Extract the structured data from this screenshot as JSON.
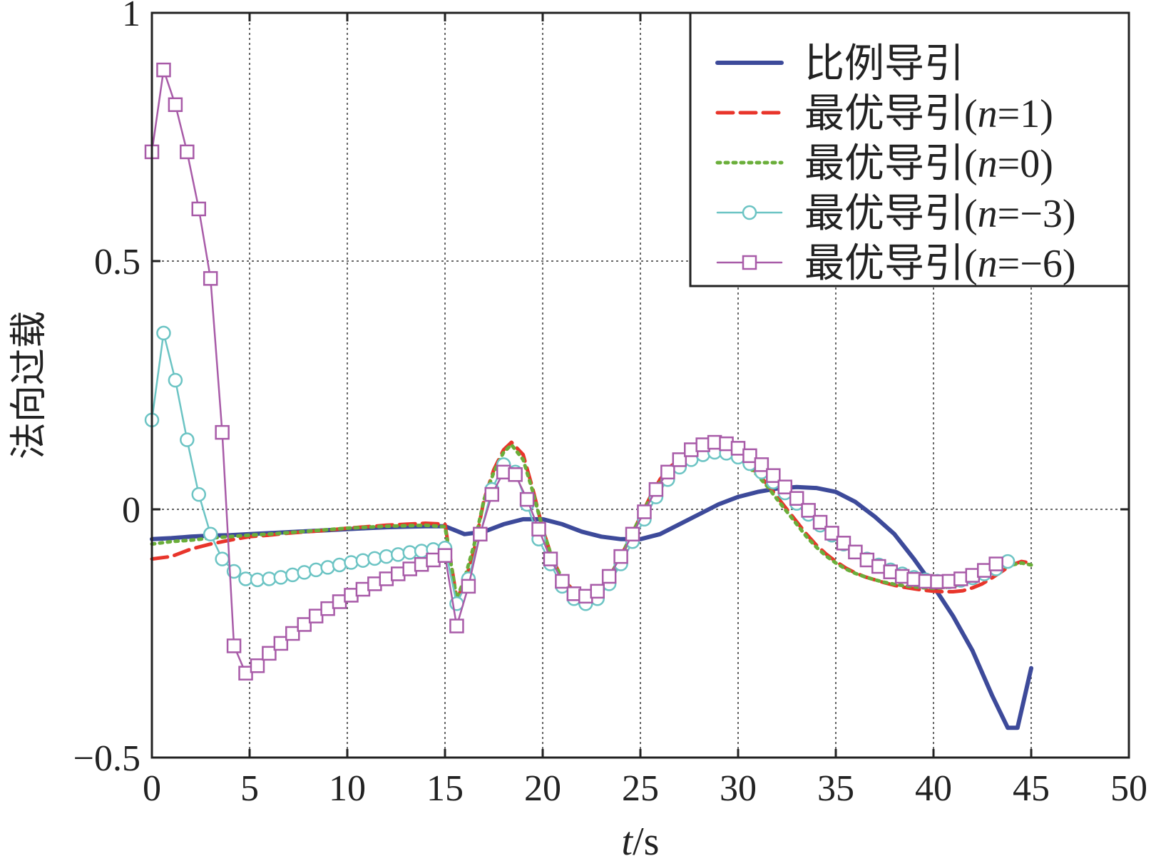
{
  "chart_data": {
    "type": "line",
    "title": "",
    "xlabel_italic": "t",
    "xlabel_rest": "/s",
    "ylabel": "法向过载",
    "xlim": [
      0,
      50
    ],
    "ylim": [
      -0.5,
      1
    ],
    "xticks": [
      0,
      5,
      10,
      15,
      20,
      25,
      30,
      35,
      40,
      45,
      50
    ],
    "yticks": [
      -0.5,
      0,
      0.5,
      1
    ],
    "ytick_labels": [
      "−0.5",
      "0",
      "0.5",
      "1"
    ],
    "grid": true,
    "legend_position": "top-right",
    "series": [
      {
        "name": "比例导引",
        "legend_prefix": "比例导引",
        "legend_italic": "",
        "legend_suffix": "",
        "color": "#3d4a9a",
        "style": "solid-thick",
        "marker": "none",
        "x": [
          0,
          1,
          2,
          3,
          4,
          5,
          6,
          7,
          8,
          9,
          10,
          11,
          12,
          13,
          14,
          15,
          16,
          17,
          18,
          19,
          20,
          21,
          22,
          23,
          24,
          25,
          26,
          27,
          28,
          29,
          30,
          31,
          32,
          33,
          34,
          35,
          36,
          37,
          38,
          39,
          40,
          41,
          42,
          43,
          43.8,
          44.3,
          45
        ],
        "y": [
          -0.06,
          -0.058,
          -0.055,
          -0.053,
          -0.052,
          -0.05,
          -0.048,
          -0.046,
          -0.044,
          -0.042,
          -0.04,
          -0.038,
          -0.036,
          -0.035,
          -0.034,
          -0.034,
          -0.05,
          -0.045,
          -0.03,
          -0.02,
          -0.02,
          -0.03,
          -0.045,
          -0.055,
          -0.06,
          -0.06,
          -0.05,
          -0.03,
          -0.01,
          0.01,
          0.025,
          0.035,
          0.042,
          0.045,
          0.043,
          0.035,
          0.015,
          -0.015,
          -0.05,
          -0.1,
          -0.155,
          -0.215,
          -0.285,
          -0.375,
          -0.44,
          -0.44,
          -0.32
        ]
      },
      {
        "name": "最优导引(n=1)",
        "legend_prefix": "最优导引(",
        "legend_italic": "n",
        "legend_suffix": "=1)",
        "color": "#e8352b",
        "style": "dashed",
        "marker": "none",
        "x": [
          0,
          1,
          2,
          3,
          4,
          5,
          6,
          7,
          8,
          9,
          10,
          11,
          12,
          13,
          14,
          15,
          15.6,
          16,
          16.5,
          17,
          17.5,
          18,
          18.4,
          19,
          19.5,
          20,
          20.5,
          21,
          21.5,
          22,
          22.5,
          23,
          23.5,
          24,
          24.5,
          25,
          25.5,
          26,
          26.5,
          27,
          27.5,
          28,
          28.5,
          29,
          29.5,
          30,
          30.5,
          31,
          31.5,
          32,
          32.5,
          33,
          33.5,
          34,
          34.5,
          35,
          35.5,
          36,
          36.5,
          37,
          37.5,
          38,
          38.5,
          39,
          39.5,
          40,
          40.5,
          41,
          41.5,
          42,
          42.5,
          43,
          43.5,
          44,
          44.5,
          45
        ],
        "y": [
          -0.1,
          -0.095,
          -0.08,
          -0.07,
          -0.062,
          -0.055,
          -0.052,
          -0.048,
          -0.045,
          -0.042,
          -0.038,
          -0.035,
          -0.032,
          -0.03,
          -0.028,
          -0.03,
          -0.18,
          -0.15,
          -0.08,
          0.02,
          0.08,
          0.12,
          0.135,
          0.11,
          0.04,
          -0.04,
          -0.1,
          -0.14,
          -0.16,
          -0.17,
          -0.17,
          -0.16,
          -0.13,
          -0.095,
          -0.055,
          -0.015,
          0.025,
          0.06,
          0.085,
          0.1,
          0.11,
          0.118,
          0.12,
          0.12,
          0.115,
          0.105,
          0.09,
          0.072,
          0.05,
          0.025,
          0,
          -0.025,
          -0.05,
          -0.072,
          -0.09,
          -0.105,
          -0.118,
          -0.128,
          -0.136,
          -0.142,
          -0.148,
          -0.153,
          -0.157,
          -0.16,
          -0.163,
          -0.165,
          -0.166,
          -0.166,
          -0.164,
          -0.158,
          -0.15,
          -0.138,
          -0.125,
          -0.112,
          -0.105,
          -0.108
        ]
      },
      {
        "name": "最优导引(n=0)",
        "legend_prefix": "最优导引(",
        "legend_italic": "n",
        "legend_suffix": "=0)",
        "color": "#6aae3a",
        "style": "dotted",
        "marker": "none",
        "x": [
          0,
          1,
          2,
          3,
          4,
          5,
          6,
          7,
          8,
          9,
          10,
          11,
          12,
          13,
          14,
          15,
          15.6,
          16,
          16.5,
          17,
          17.5,
          18,
          18.4,
          19,
          19.5,
          20,
          20.5,
          21,
          21.5,
          22,
          22.5,
          23,
          23.5,
          24,
          24.5,
          25,
          25.5,
          26,
          26.5,
          27,
          27.5,
          28,
          28.5,
          29,
          29.5,
          30,
          30.5,
          31,
          31.5,
          32,
          32.5,
          33,
          33.5,
          34,
          34.5,
          35,
          35.5,
          36,
          36.5,
          37,
          37.5,
          38,
          38.5,
          39,
          39.5,
          40,
          40.5,
          41,
          41.5,
          42,
          42.5,
          43,
          43.5,
          44,
          44.5,
          45
        ],
        "y": [
          -0.07,
          -0.065,
          -0.062,
          -0.058,
          -0.055,
          -0.052,
          -0.05,
          -0.047,
          -0.044,
          -0.041,
          -0.038,
          -0.036,
          -0.034,
          -0.033,
          -0.032,
          -0.035,
          -0.18,
          -0.14,
          -0.07,
          0.02,
          0.075,
          0.115,
          0.13,
          0.1,
          0.035,
          -0.04,
          -0.1,
          -0.14,
          -0.16,
          -0.168,
          -0.168,
          -0.158,
          -0.13,
          -0.095,
          -0.055,
          -0.015,
          0.022,
          0.055,
          0.08,
          0.097,
          0.108,
          0.115,
          0.117,
          0.117,
          0.112,
          0.102,
          0.087,
          0.068,
          0.046,
          0.02,
          -0.005,
          -0.03,
          -0.055,
          -0.076,
          -0.094,
          -0.108,
          -0.12,
          -0.129,
          -0.136,
          -0.142,
          -0.147,
          -0.151,
          -0.154,
          -0.156,
          -0.158,
          -0.159,
          -0.158,
          -0.155,
          -0.15,
          -0.143,
          -0.135,
          -0.127,
          -0.12,
          -0.112,
          -0.108,
          -0.112
        ]
      },
      {
        "name": "最优导引(n=−3)",
        "legend_prefix": "最优导引(",
        "legend_italic": "n",
        "legend_suffix": "=−3)",
        "color": "#6cc4c4",
        "style": "solid",
        "marker": "circle",
        "x": [
          0,
          0.6,
          1.2,
          1.8,
          2.4,
          3,
          3.6,
          4.2,
          4.8,
          5.4,
          6,
          6.6,
          7.2,
          7.8,
          8.4,
          9,
          9.6,
          10.2,
          10.8,
          11.4,
          12,
          12.6,
          13.2,
          13.8,
          14.4,
          15,
          15.6,
          16.2,
          16.8,
          17.4,
          18,
          18.6,
          19.2,
          19.8,
          20.4,
          21,
          21.6,
          22.2,
          22.8,
          23.4,
          24,
          24.6,
          25.2,
          25.8,
          26.4,
          27,
          27.6,
          28.2,
          28.8,
          29.4,
          30,
          30.6,
          31.2,
          31.8,
          32.4,
          33,
          33.6,
          34.2,
          34.8,
          35.4,
          36,
          36.6,
          37.2,
          37.8,
          38.4,
          39,
          39.6,
          40.2,
          40.8,
          41.4,
          42,
          42.6,
          43.2,
          43.8
        ],
        "y": [
          0.18,
          0.355,
          0.26,
          0.14,
          0.03,
          -0.05,
          -0.1,
          -0.125,
          -0.14,
          -0.142,
          -0.14,
          -0.137,
          -0.132,
          -0.127,
          -0.122,
          -0.117,
          -0.112,
          -0.107,
          -0.103,
          -0.099,
          -0.095,
          -0.091,
          -0.087,
          -0.084,
          -0.081,
          -0.078,
          -0.19,
          -0.14,
          -0.05,
          0.04,
          0.09,
          0.075,
          0.01,
          -0.06,
          -0.11,
          -0.155,
          -0.18,
          -0.19,
          -0.18,
          -0.15,
          -0.11,
          -0.065,
          -0.02,
          0.025,
          0.06,
          0.085,
          0.1,
          0.11,
          0.115,
          0.113,
          0.105,
          0.092,
          0.075,
          0.055,
          0.033,
          0.012,
          -0.01,
          -0.032,
          -0.052,
          -0.07,
          -0.086,
          -0.1,
          -0.112,
          -0.122,
          -0.13,
          -0.137,
          -0.142,
          -0.145,
          -0.146,
          -0.143,
          -0.138,
          -0.13,
          -0.12,
          -0.105
        ]
      },
      {
        "name": "最优导引(n=−6)",
        "legend_prefix": "最优导引(",
        "legend_italic": "n",
        "legend_suffix": "=−6)",
        "color": "#a85ba8",
        "style": "solid",
        "marker": "square",
        "x": [
          0,
          0.6,
          1.2,
          1.8,
          2.4,
          3,
          3.6,
          4.2,
          4.8,
          5.4,
          6,
          6.6,
          7.2,
          7.8,
          8.4,
          9,
          9.6,
          10.2,
          10.8,
          11.4,
          12,
          12.6,
          13.2,
          13.8,
          14.4,
          15,
          15.6,
          16.2,
          16.8,
          17.4,
          18,
          18.6,
          19.2,
          19.8,
          20.4,
          21,
          21.6,
          22.2,
          22.8,
          23.4,
          24,
          24.6,
          25.2,
          25.8,
          26.4,
          27,
          27.6,
          28.2,
          28.8,
          29.4,
          30,
          30.6,
          31.2,
          31.8,
          32.4,
          33,
          33.6,
          34.2,
          34.8,
          35.4,
          36,
          36.6,
          37.2,
          37.8,
          38.4,
          39,
          39.6,
          40.2,
          40.8,
          41.4,
          42,
          42.6,
          43.2
        ],
        "y": [
          0.72,
          0.885,
          0.815,
          0.72,
          0.605,
          0.465,
          0.155,
          -0.275,
          -0.33,
          -0.315,
          -0.29,
          -0.27,
          -0.25,
          -0.232,
          -0.215,
          -0.2,
          -0.186,
          -0.173,
          -0.161,
          -0.15,
          -0.14,
          -0.13,
          -0.12,
          -0.111,
          -0.102,
          -0.093,
          -0.235,
          -0.155,
          -0.05,
          0.03,
          0.075,
          0.07,
          0.02,
          -0.04,
          -0.1,
          -0.145,
          -0.17,
          -0.175,
          -0.165,
          -0.135,
          -0.095,
          -0.05,
          -0.005,
          0.04,
          0.075,
          0.1,
          0.12,
          0.13,
          0.135,
          0.132,
          0.123,
          0.108,
          0.09,
          0.068,
          0.045,
          0.022,
          -0.002,
          -0.026,
          -0.048,
          -0.068,
          -0.086,
          -0.102,
          -0.115,
          -0.126,
          -0.135,
          -0.141,
          -0.145,
          -0.146,
          -0.145,
          -0.14,
          -0.133,
          -0.123,
          -0.11
        ]
      }
    ]
  }
}
